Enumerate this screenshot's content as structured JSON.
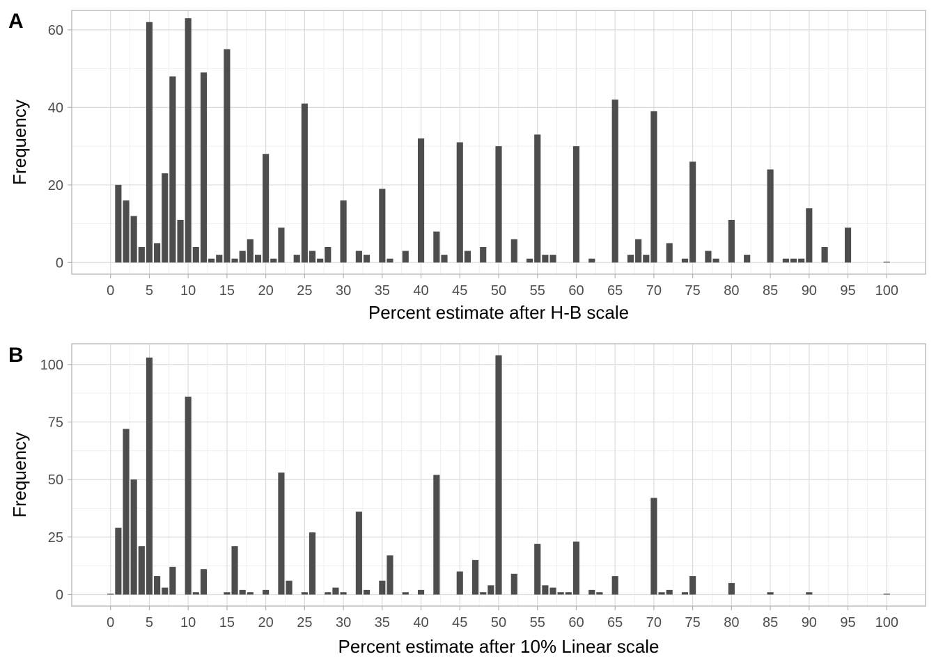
{
  "figure": {
    "panels": [
      {
        "panel_label": "A"
      },
      {
        "panel_label": "B"
      }
    ]
  },
  "colors": {
    "bar": "#4d4d4d",
    "panel_border": "#b3b3b3",
    "grid_major": "#dcdcdc",
    "grid_minor": "#efefef",
    "tick_text": "#4d4d4d",
    "axis_title": "#000000"
  },
  "chart_data": [
    {
      "type": "bar",
      "panel": "A",
      "xlabel": "Percent estimate after H-B scale",
      "ylabel": "Frequency",
      "xlim": [
        -5,
        105
      ],
      "ylim": [
        -3,
        65
      ],
      "x_ticks": [
        "0",
        "5",
        "10",
        "15",
        "20",
        "25",
        "30",
        "35",
        "40",
        "45",
        "50",
        "55",
        "60",
        "65",
        "70",
        "75",
        "80",
        "85",
        "90",
        "95",
        "100"
      ],
      "y_ticks": [
        "0",
        "20",
        "40",
        "60"
      ],
      "grid": true,
      "x": [
        1,
        2,
        3,
        4,
        5,
        6,
        7,
        8,
        9,
        10,
        11,
        12,
        13,
        14,
        15,
        16,
        17,
        18,
        19,
        20,
        21,
        22,
        24,
        25,
        26,
        27,
        28,
        30,
        32,
        33,
        35,
        36,
        38,
        40,
        42,
        43,
        45,
        46,
        48,
        50,
        52,
        54,
        55,
        56,
        57,
        60,
        62,
        65,
        67,
        68,
        69,
        70,
        72,
        74,
        75,
        77,
        78,
        80,
        82,
        85,
        87,
        88,
        89,
        90,
        92,
        95,
        100
      ],
      "values": [
        20,
        16,
        12,
        4,
        62,
        5,
        23,
        48,
        11,
        63,
        4,
        49,
        1,
        2,
        55,
        1,
        3,
        6,
        2,
        28,
        1,
        9,
        2,
        41,
        3,
        1,
        4,
        16,
        3,
        2,
        19,
        1,
        3,
        32,
        8,
        2,
        31,
        3,
        4,
        30,
        6,
        1,
        33,
        2,
        2,
        30,
        1,
        42,
        2,
        6,
        2,
        39,
        5,
        1,
        26,
        3,
        1,
        11,
        2,
        24,
        1,
        1,
        1,
        14,
        4,
        9,
        0
      ]
    },
    {
      "type": "bar",
      "panel": "B",
      "xlabel": "Percent estimate after 10% Linear scale",
      "ylabel": "Frequency",
      "xlim": [
        -5,
        105
      ],
      "ylim": [
        -5,
        109
      ],
      "x_ticks": [
        "0",
        "5",
        "10",
        "15",
        "20",
        "25",
        "30",
        "35",
        "40",
        "45",
        "50",
        "55",
        "60",
        "65",
        "70",
        "75",
        "80",
        "85",
        "90",
        "95",
        "100"
      ],
      "y_ticks": [
        "0",
        "25",
        "50",
        "75",
        "100"
      ],
      "grid": true,
      "x": [
        0,
        1,
        2,
        3,
        4,
        5,
        6,
        7,
        8,
        10,
        11,
        12,
        15,
        16,
        17,
        18,
        20,
        22,
        23,
        25,
        26,
        28,
        29,
        30,
        32,
        33,
        35,
        36,
        38,
        40,
        42,
        45,
        47,
        48,
        49,
        50,
        52,
        55,
        56,
        57,
        58,
        59,
        60,
        62,
        63,
        65,
        70,
        71,
        72,
        74,
        75,
        80,
        85,
        90,
        100
      ],
      "values": [
        0,
        29,
        72,
        50,
        21,
        103,
        8,
        3,
        12,
        86,
        1,
        11,
        1,
        21,
        2,
        1,
        2,
        53,
        6,
        1,
        27,
        1,
        3,
        1,
        36,
        2,
        6,
        17,
        1,
        2,
        52,
        10,
        15,
        1,
        4,
        104,
        9,
        22,
        4,
        3,
        1,
        1,
        23,
        2,
        1,
        8,
        42,
        1,
        2,
        1,
        8,
        5,
        1,
        1,
        0
      ]
    }
  ]
}
